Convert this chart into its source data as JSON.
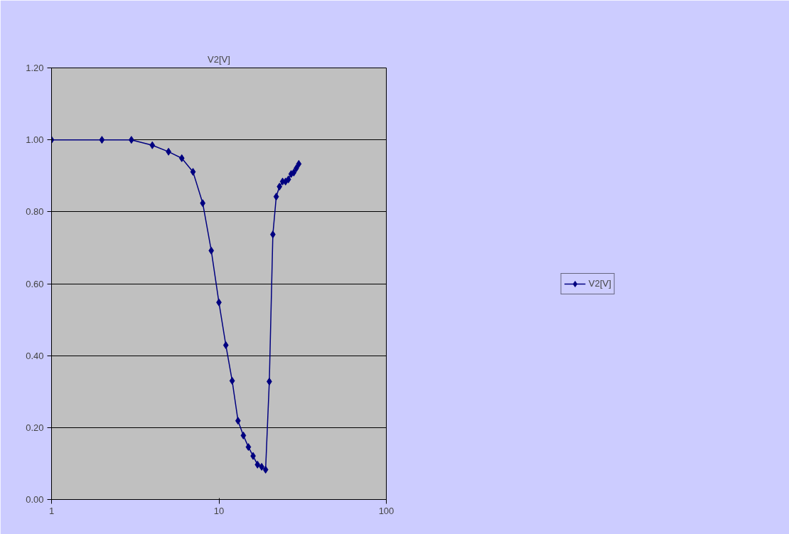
{
  "chart_data": {
    "type": "line",
    "title": "V2[V]",
    "x": [
      1,
      2,
      3,
      4,
      5,
      6,
      7,
      8,
      9,
      10,
      11,
      12,
      13,
      14,
      15,
      16,
      17,
      18,
      19,
      20,
      21,
      22,
      23,
      24,
      25,
      26,
      27,
      28,
      29,
      30
    ],
    "series": [
      {
        "name": "V2[V]",
        "color": "#000080",
        "values": [
          1.0,
          1.0,
          1.0,
          0.985,
          0.967,
          0.949,
          0.911,
          0.824,
          0.692,
          0.548,
          0.429,
          0.33,
          0.219,
          0.178,
          0.146,
          0.121,
          0.097,
          0.091,
          0.083,
          0.328,
          0.737,
          0.842,
          0.87,
          0.884,
          0.884,
          0.89,
          0.905,
          0.909,
          0.921,
          0.933
        ]
      }
    ],
    "log": "x",
    "xlim": [
      1,
      100
    ],
    "xticks": [
      1,
      10,
      100
    ],
    "ylim": [
      0,
      1.2
    ],
    "yticks": [
      {
        "value": 0,
        "label": "0.00"
      },
      {
        "value": 0.2,
        "label": "0.20"
      },
      {
        "value": 0.4,
        "label": "0.40"
      },
      {
        "value": 0.6,
        "label": "0.60"
      },
      {
        "value": 0.8,
        "label": "0.80"
      },
      {
        "value": 1.0,
        "label": "1.00"
      },
      {
        "value": 1.2,
        "label": "1.20"
      }
    ],
    "grid": "y",
    "legend": "right",
    "marker": "diamond",
    "line_style": "solid"
  }
}
